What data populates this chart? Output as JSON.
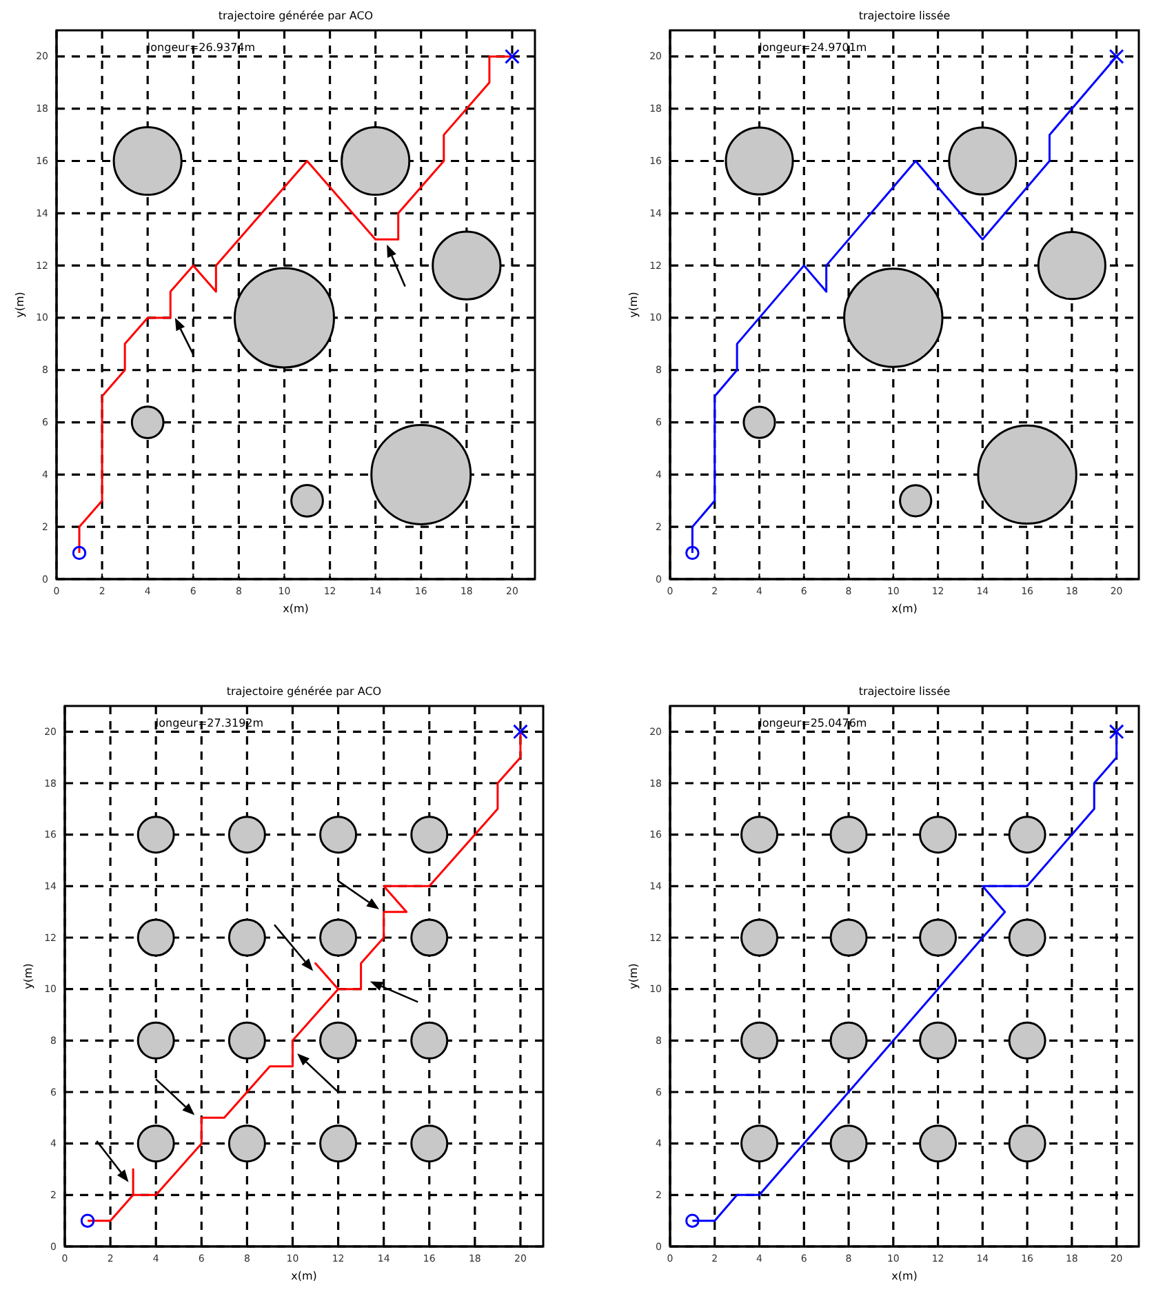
{
  "chart_data": [
    {
      "type": "line",
      "title": "trajectoire générée par ACO",
      "xlabel": "x(m)",
      "ylabel": "y(m)",
      "xlim": [
        0,
        21
      ],
      "ylim": [
        0,
        21
      ],
      "xticks": [
        0,
        2,
        4,
        6,
        8,
        10,
        12,
        14,
        16,
        18,
        20
      ],
      "yticks": [
        0,
        2,
        4,
        6,
        8,
        10,
        12,
        14,
        16,
        18,
        20
      ],
      "grid": true,
      "annotations": [
        "longeur=26.9374m"
      ],
      "series": [
        {
          "type": "bubble",
          "color": "#c8c8c8",
          "x": [
            4,
            14,
            18,
            10,
            4,
            11,
            16
          ],
          "values": [
            16,
            16,
            12,
            10,
            6,
            3,
            4
          ],
          "sizes": [
            0.465,
            0.465,
            0.465,
            1,
            0.101,
            0.101,
            1
          ]
        },
        {
          "type": "line",
          "color": "#ff0000",
          "x": [
            1,
            1,
            2,
            2,
            3,
            3,
            4,
            5,
            5,
            6,
            7,
            7,
            11,
            14,
            15,
            15,
            17,
            17,
            18,
            19,
            19,
            20
          ],
          "values": [
            1,
            2,
            3,
            7,
            8,
            9,
            10,
            10,
            11,
            12,
            11,
            12,
            16,
            13,
            13,
            14,
            16,
            17,
            18,
            19,
            20,
            20
          ]
        },
        {
          "type": "scatter",
          "marker": "circle",
          "color": "#0000ff",
          "x": [
            1
          ],
          "values": [
            1
          ]
        },
        {
          "type": "scatter",
          "marker": "cross",
          "color": "#0000ff",
          "x": [
            20
          ],
          "values": [
            20
          ]
        }
      ]
    },
    {
      "type": "line",
      "title": "trajectoire lissée",
      "xlabel": "x(m)",
      "ylabel": "y(m)",
      "xlim": [
        0,
        21
      ],
      "ylim": [
        0,
        21
      ],
      "xticks": [
        0,
        2,
        4,
        6,
        8,
        10,
        12,
        14,
        16,
        18,
        20
      ],
      "yticks": [
        0,
        2,
        4,
        6,
        8,
        10,
        12,
        14,
        16,
        18,
        20
      ],
      "grid": true,
      "annotations": [
        "longeur=24.9701m"
      ],
      "series": [
        {
          "type": "bubble",
          "color": "#c8c8c8",
          "x": [
            4,
            14,
            18,
            10,
            4,
            11,
            16
          ],
          "values": [
            16,
            16,
            12,
            10,
            6,
            3,
            4
          ],
          "sizes": [
            0.465,
            0.465,
            0.465,
            1,
            0.101,
            0.101,
            1
          ]
        },
        {
          "type": "line",
          "color": "#0000ff",
          "x": [
            1,
            1,
            2,
            2,
            3,
            3,
            6,
            7,
            7,
            11,
            14,
            17,
            17,
            20
          ],
          "values": [
            1,
            2,
            3,
            7,
            8,
            9,
            12,
            11,
            12,
            16,
            13,
            16,
            17,
            20
          ]
        },
        {
          "type": "scatter",
          "marker": "circle",
          "color": "#0000ff",
          "x": [
            1
          ],
          "values": [
            1
          ]
        },
        {
          "type": "scatter",
          "marker": "cross",
          "color": "#0000ff",
          "x": [
            20
          ],
          "values": [
            20
          ]
        }
      ]
    },
    {
      "type": "line",
      "title": "trajectoire générée par ACO",
      "xlabel": "x(m)",
      "ylabel": "y(m)",
      "xlim": [
        0,
        21
      ],
      "ylim": [
        0,
        21
      ],
      "xticks": [
        0,
        2,
        4,
        6,
        8,
        10,
        12,
        14,
        16,
        18,
        20
      ],
      "yticks": [
        0,
        2,
        4,
        6,
        8,
        10,
        12,
        14,
        16,
        18,
        20
      ],
      "grid": true,
      "annotations": [
        "longeur=27.3192m"
      ],
      "series": [
        {
          "type": "bubble",
          "color": "#c8c8c8",
          "x": [
            4,
            8,
            12,
            16,
            4,
            8,
            12,
            16,
            4,
            8,
            12,
            16,
            4,
            8,
            12,
            16
          ],
          "values": [
            16,
            16,
            16,
            16,
            12,
            12,
            12,
            12,
            8,
            8,
            8,
            8,
            4,
            4,
            4,
            4
          ],
          "sizes": [
            1,
            1,
            1,
            1,
            1,
            1,
            1,
            1,
            1,
            1,
            1,
            1,
            1,
            1,
            1,
            1
          ]
        },
        {
          "type": "line",
          "color": "#ff0000",
          "x": [
            1,
            2,
            3,
            3,
            3,
            4,
            6,
            6,
            7,
            9,
            10,
            10,
            12,
            11,
            12,
            13,
            13,
            14,
            14,
            15,
            14,
            16,
            19,
            19,
            20,
            20
          ],
          "values": [
            1,
            1,
            2,
            3,
            2,
            2,
            4,
            5,
            5,
            7,
            7,
            8,
            10,
            11,
            10,
            10,
            11,
            12,
            13,
            13,
            14,
            14,
            17,
            18,
            19,
            20
          ]
        },
        {
          "type": "scatter",
          "marker": "circle",
          "color": "#0000ff",
          "x": [
            1
          ],
          "values": [
            1
          ]
        },
        {
          "type": "scatter",
          "marker": "cross",
          "color": "#0000ff",
          "x": [
            20
          ],
          "values": [
            20
          ]
        }
      ]
    },
    {
      "type": "line",
      "title": "trajectoire lissée",
      "xlabel": "x(m)",
      "ylabel": "y(m)",
      "xlim": [
        0,
        21
      ],
      "ylim": [
        0,
        21
      ],
      "xticks": [
        0,
        2,
        4,
        6,
        8,
        10,
        12,
        14,
        16,
        18,
        20
      ],
      "yticks": [
        0,
        2,
        4,
        6,
        8,
        10,
        12,
        14,
        16,
        18,
        20
      ],
      "grid": true,
      "annotations": [
        "longeur=25.0476m"
      ],
      "series": [
        {
          "type": "bubble",
          "color": "#c8c8c8",
          "x": [
            4,
            8,
            12,
            16,
            4,
            8,
            12,
            16,
            4,
            8,
            12,
            16,
            4,
            8,
            12,
            16
          ],
          "values": [
            16,
            16,
            16,
            16,
            12,
            12,
            12,
            12,
            8,
            8,
            8,
            8,
            4,
            4,
            4,
            4
          ],
          "sizes": [
            1,
            1,
            1,
            1,
            1,
            1,
            1,
            1,
            1,
            1,
            1,
            1,
            1,
            1,
            1,
            1
          ]
        },
        {
          "type": "line",
          "color": "#0000ff",
          "x": [
            1,
            2,
            3,
            4,
            15,
            14,
            16,
            19,
            19,
            20,
            20
          ],
          "values": [
            1,
            1,
            2,
            2,
            13,
            14,
            14,
            17,
            18,
            19,
            20
          ]
        },
        {
          "type": "scatter",
          "marker": "circle",
          "color": "#0000ff",
          "x": [
            1
          ],
          "values": [
            1
          ]
        },
        {
          "type": "scatter",
          "marker": "cross",
          "color": "#0000ff",
          "x": [
            20
          ],
          "values": [
            20
          ]
        }
      ]
    }
  ]
}
